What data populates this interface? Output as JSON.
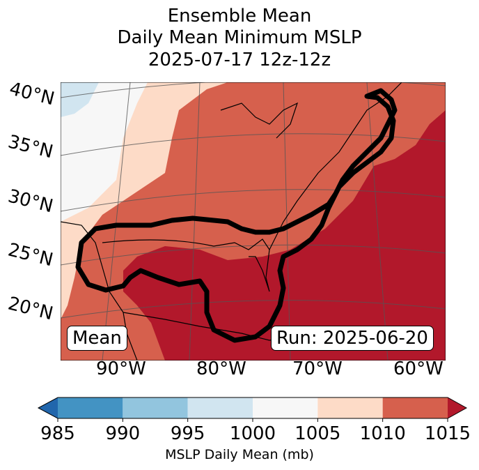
{
  "title": [
    "Ensemble Mean",
    "Daily Mean Minimum MSLP",
    "2025-07-17 12z-12z"
  ],
  "lat_labels": [
    "40°N",
    "35°N",
    "30°N",
    "25°N",
    "20°N"
  ],
  "lon_labels": [
    "90°W",
    "80°W",
    "70°W",
    "60°W"
  ],
  "mean_box": "Mean",
  "run_box": "Run: 2025-06-20",
  "colorbar": {
    "label": "MSLP Daily Mean (mb)",
    "ticks": [
      "985",
      "990",
      "995",
      "1000",
      "1005",
      "1010",
      "1015"
    ],
    "colors": [
      "#2166ac",
      "#4393c3",
      "#92c5de",
      "#d1e5f0",
      "#f7f7f7",
      "#fddbc7",
      "#d6604d",
      "#b2182b"
    ],
    "extend": "both"
  }
}
